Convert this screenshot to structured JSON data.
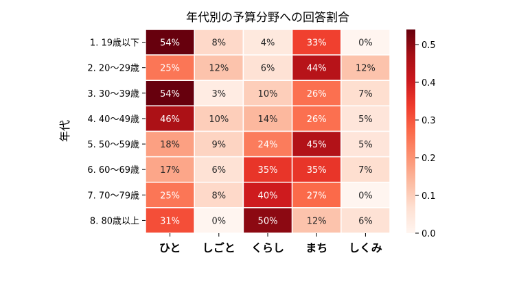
{
  "chart_data": {
    "type": "heatmap",
    "title": "年代別の予算分野への回答割合",
    "ylabel": "年代",
    "xlabel": "",
    "columns": [
      "ひと",
      "しごと",
      "くらし",
      "まち",
      "しくみ"
    ],
    "rows": [
      "1. 19歳以下",
      "2. 20～29歳",
      "3. 30～39歳",
      "4. 40～49歳",
      "5. 50～59歳",
      "6. 60～69歳",
      "7. 70～79歳",
      "8. 80歳以上"
    ],
    "values": [
      [
        0.54,
        0.08,
        0.04,
        0.33,
        0.0
      ],
      [
        0.25,
        0.12,
        0.06,
        0.44,
        0.12
      ],
      [
        0.54,
        0.03,
        0.1,
        0.26,
        0.07
      ],
      [
        0.46,
        0.1,
        0.14,
        0.26,
        0.05
      ],
      [
        0.18,
        0.09,
        0.24,
        0.45,
        0.05
      ],
      [
        0.17,
        0.06,
        0.35,
        0.35,
        0.07
      ],
      [
        0.25,
        0.08,
        0.4,
        0.27,
        0.0
      ],
      [
        0.31,
        0.0,
        0.5,
        0.12,
        0.06
      ]
    ],
    "colormap": "Reds",
    "colorbar": {
      "range": [
        0.0,
        0.54
      ],
      "ticks": [
        "0.0",
        "0.1",
        "0.2",
        "0.3",
        "0.4",
        "0.5"
      ]
    },
    "annotation_format": "percent"
  }
}
